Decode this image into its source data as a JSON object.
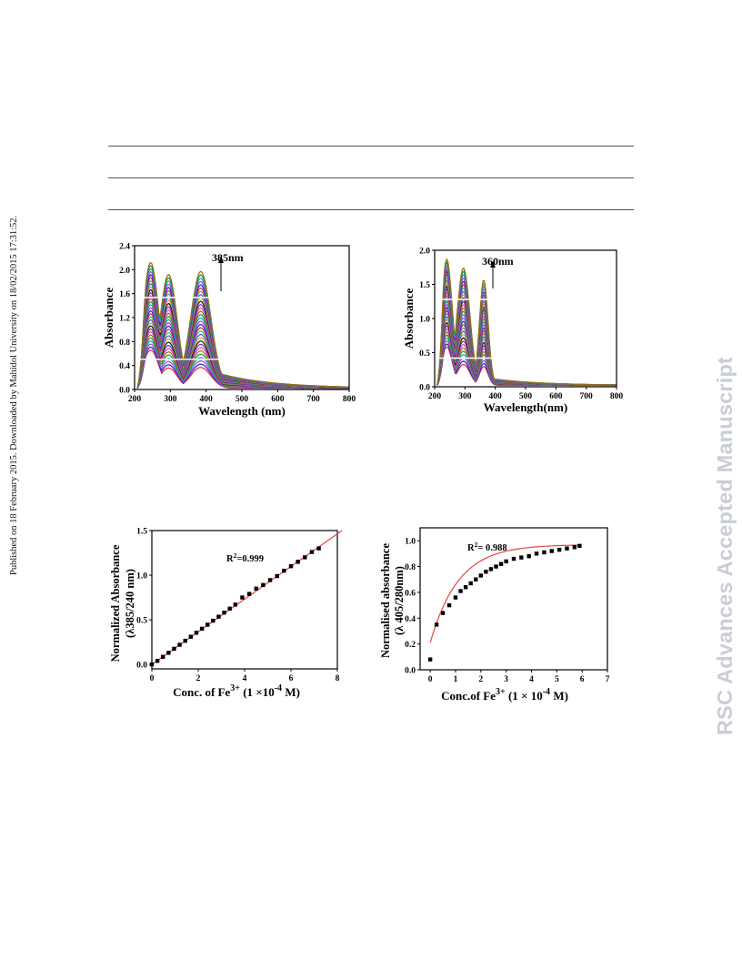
{
  "side_note": "Published on 18 February 2015. Downloaded by Mahidol University on 18/02/2015 17:31:52.",
  "watermark": "RSC Advances Accepted Manuscript",
  "colors": {
    "curve_palette": [
      "#e8252b",
      "#1e22d8",
      "#c43bd6",
      "#17a1c9",
      "#1a9a2e",
      "#9a6b16",
      "#ef3fae",
      "#6b2fb0",
      "#111111",
      "#d9a21f",
      "#4c55e0",
      "#2dbf70"
    ],
    "fit_line": "#e8453f",
    "points": "#000000"
  },
  "chart_data": [
    {
      "type": "line",
      "title": "",
      "xlabel": "Wavelength (nm)",
      "ylabel": "Absorbance",
      "xlim": [
        200,
        800
      ],
      "ylim": [
        0.0,
        2.4
      ],
      "xticks": [
        "200",
        "300",
        "400",
        "500",
        "600",
        "700",
        "800"
      ],
      "yticks": [
        "0.0",
        "0.4",
        "0.8",
        "1.2",
        "1.6",
        "2.0",
        "2.4"
      ],
      "annotation": "385nm",
      "annotation_x": 385,
      "n_series": 30,
      "peaks": [
        {
          "x": 245,
          "width": 32,
          "max": 2.1
        },
        {
          "x": 295,
          "width": 34,
          "max": 1.9
        },
        {
          "x": 385,
          "width": 40,
          "max": 1.95
        }
      ],
      "tail_max": 0.35,
      "tail_decay": 150
    },
    {
      "type": "line",
      "title": "",
      "xlabel": "Wavelength(nm)",
      "ylabel": "Absorbance",
      "xlim": [
        200,
        800
      ],
      "ylim": [
        0.0,
        2.0
      ],
      "xticks": [
        "200",
        "300",
        "400",
        "500",
        "600",
        "700",
        "800"
      ],
      "yticks": [
        "0.0",
        "0.5",
        "1.0",
        "1.5",
        "2.0"
      ],
      "annotation": "360nm",
      "annotation_x": 360,
      "n_series": 30,
      "peaks": [
        {
          "x": 240,
          "width": 26,
          "max": 1.85
        },
        {
          "x": 295,
          "width": 30,
          "max": 1.72
        },
        {
          "x": 362,
          "width": 20,
          "max": 1.55
        }
      ],
      "tail_max": 0.12,
      "tail_decay": 160
    },
    {
      "type": "scatter",
      "title": "",
      "xlabel": "Conc. of Fe3+ (1 ×10-4 M)",
      "xlabel_parts": [
        "Conc. of Fe",
        "3+",
        " (1 ×10",
        "-4",
        " M)"
      ],
      "ylabel": "Normalized Absorbance (λ385/240 nm)",
      "ylabel_lines": [
        "Normalized Absorbance",
        "(λ385/240 nm)"
      ],
      "xlim": [
        0,
        8
      ],
      "ylim": [
        -0.05,
        1.5
      ],
      "xticks": [
        "0",
        "2",
        "4",
        "6",
        "8"
      ],
      "yticks": [
        "0.0",
        "0.5",
        "1.0",
        "1.5"
      ],
      "annotation": "R2=0.999",
      "annotation_parts": [
        "R",
        "2",
        "=0.999"
      ],
      "x": [
        0.0,
        0.24,
        0.48,
        0.72,
        0.96,
        1.2,
        1.44,
        1.68,
        1.92,
        2.16,
        2.4,
        2.64,
        2.88,
        3.12,
        3.36,
        3.6,
        3.9,
        4.2,
        4.5,
        4.8,
        5.1,
        5.4,
        5.7,
        6.0,
        6.3,
        6.6,
        6.9,
        7.2
      ],
      "y": [
        0.0,
        0.04,
        0.085,
        0.13,
        0.175,
        0.22,
        0.265,
        0.31,
        0.355,
        0.4,
        0.445,
        0.49,
        0.535,
        0.58,
        0.625,
        0.67,
        0.75,
        0.79,
        0.85,
        0.89,
        0.945,
        0.99,
        1.05,
        1.1,
        1.15,
        1.2,
        1.26,
        1.3
      ],
      "fit": {
        "kind": "linear",
        "x": [
          0,
          8.2
        ],
        "y": [
          0.0,
          1.5
        ]
      }
    },
    {
      "type": "scatter",
      "title": "",
      "xlabel": "Conc.of Fe3+ (1 × 10-4 M)",
      "xlabel_parts": [
        "Conc.of Fe",
        "3+",
        " (1 × 10",
        "-4",
        " M)"
      ],
      "ylabel": "Normalised absorbance (λ 405/280nm)",
      "ylabel_lines": [
        "Normalised absorbance",
        "(λ 405/280nm)"
      ],
      "xlim": [
        -0.4,
        7
      ],
      "ylim": [
        0.0,
        1.1
      ],
      "xticks": [
        "0",
        "1",
        "2",
        "3",
        "4",
        "5",
        "6",
        "7"
      ],
      "yticks": [
        "0.0",
        "0.2",
        "0.4",
        "0.6",
        "0.8",
        "1.0"
      ],
      "annotation": "R2= 0.988",
      "annotation_parts": [
        "R",
        "2",
        "= 0.988"
      ],
      "x": [
        0.0,
        0.25,
        0.5,
        0.75,
        1.0,
        1.2,
        1.4,
        1.6,
        1.8,
        2.0,
        2.2,
        2.4,
        2.6,
        2.8,
        3.0,
        3.3,
        3.6,
        3.9,
        4.2,
        4.5,
        4.8,
        5.1,
        5.4,
        5.7,
        5.9
      ],
      "y": [
        0.08,
        0.35,
        0.44,
        0.5,
        0.56,
        0.61,
        0.64,
        0.67,
        0.7,
        0.73,
        0.76,
        0.78,
        0.8,
        0.82,
        0.84,
        0.86,
        0.87,
        0.88,
        0.9,
        0.91,
        0.92,
        0.93,
        0.94,
        0.95,
        0.96
      ],
      "fit": {
        "kind": "saturation",
        "a": 0.21,
        "b": 0.76,
        "k": 0.9,
        "x0": 0.0,
        "x1": 5.9
      }
    }
  ]
}
